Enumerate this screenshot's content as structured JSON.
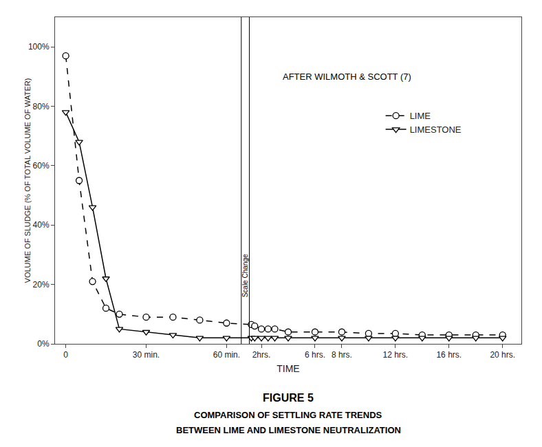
{
  "chart_data": {
    "type": "line",
    "title": "FIGURE 5",
    "subtitle": [
      "COMPARISON OF SETTLING RATE TRENDS",
      "BETWEEN LIME AND LIMESTONE NEUTRALIZATION"
    ],
    "annotations": [
      "AFTER WILMOTH & SCOTT (7)",
      "Scale Change"
    ],
    "x_label": "TIME",
    "y_label": "VOLUME OF SLUDGE (% OF TOTAL VOLUME OF WATER)",
    "x": [
      0,
      5,
      10,
      15,
      20,
      30,
      40,
      50,
      60,
      75,
      90,
      120,
      150,
      180,
      240,
      360,
      480,
      600,
      720,
      840,
      960,
      1080,
      1200
    ],
    "series": [
      {
        "name": "LIME",
        "color": "#000000",
        "marker": "circle",
        "line_style": "dashed",
        "values": [
          97,
          55,
          21,
          12,
          10,
          9,
          9,
          8,
          7,
          6.5,
          6,
          5,
          5,
          5,
          4,
          4,
          4,
          3.5,
          3.5,
          3,
          3,
          3,
          3
        ]
      },
      {
        "name": "LIMESTONE",
        "color": "#000000",
        "marker": "triangle-down",
        "line_style": "solid",
        "values": [
          78,
          68,
          46,
          22,
          5,
          4,
          3,
          2,
          2,
          2,
          2,
          2,
          2,
          2,
          2,
          2,
          2,
          2,
          2,
          2,
          2,
          2,
          2
        ]
      }
    ],
    "xlim": [
      -4,
      1284
    ],
    "xticks": [
      0,
      {
        "value": 30,
        "label": "30 min."
      },
      {
        "value": 60,
        "label": "60 min."
      },
      {
        "value": 120,
        "label": "2hrs."
      },
      {
        "value": 360,
        "label": "6 hrs."
      },
      {
        "value": 480,
        "label": "8 hrs."
      },
      {
        "value": 720,
        "label": "12 hrs."
      },
      {
        "value": 960,
        "label": "16 hrs."
      },
      {
        "value": 1200,
        "label": "20 hrs."
      }
    ],
    "ylim": [
      0,
      110
    ],
    "yticks": [
      {
        "value": 0,
        "label": "0%"
      },
      {
        "value": 20,
        "label": "20%"
      },
      {
        "value": 40,
        "label": "40%"
      },
      {
        "value": 60,
        "label": "60%"
      },
      {
        "value": 80,
        "label": "80%"
      },
      {
        "value": 100,
        "label": "100%"
      }
    ],
    "grid": false,
    "legend": "upper right"
  }
}
